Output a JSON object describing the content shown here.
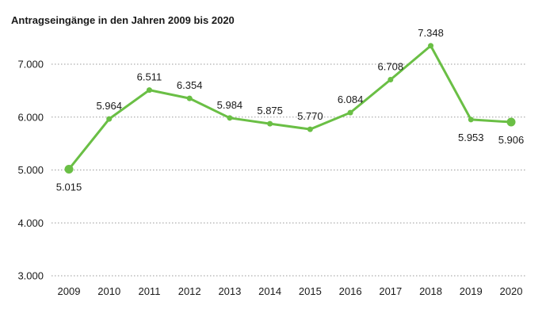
{
  "chart_data": {
    "type": "line",
    "title": "Antragseingänge in den Jahren 2009 bis 2020",
    "xlabel": "",
    "ylabel": "",
    "categories": [
      "2009",
      "2010",
      "2011",
      "2012",
      "2013",
      "2014",
      "2015",
      "2016",
      "2017",
      "2018",
      "2019",
      "2020"
    ],
    "values": [
      5015,
      5964,
      6511,
      6354,
      5984,
      5875,
      5770,
      6084,
      6708,
      7348,
      5953,
      5906
    ],
    "data_labels": [
      "5.015",
      "5.964",
      "6.511",
      "6.354",
      "5.984",
      "5.875",
      "5.770",
      "6.084",
      "6.708",
      "7.348",
      "5.953",
      "5.906"
    ],
    "ylim": [
      3000,
      7000
    ],
    "y_ticks": [
      3000,
      4000,
      5000,
      6000,
      7000
    ],
    "y_tick_labels": [
      "3.000",
      "4.000",
      "5.000",
      "6.000",
      "7.000"
    ],
    "grid": true,
    "legend": "none",
    "line_color": "#6abf45"
  }
}
